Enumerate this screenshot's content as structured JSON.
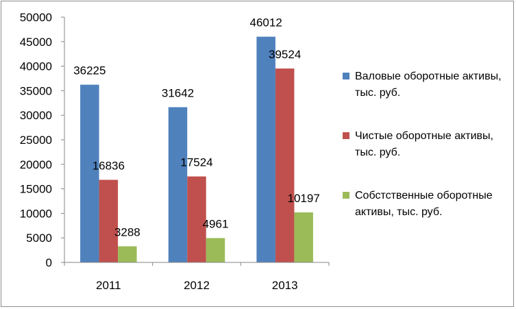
{
  "chart_data": {
    "type": "bar",
    "categories": [
      "2011",
      "2012",
      "2013"
    ],
    "series": [
      {
        "name": "Валовые оборотные активы, тыс. руб.",
        "values": [
          36225,
          31642,
          46012
        ],
        "color": "#4f81bd"
      },
      {
        "name": "Чистые оборотные активы, тыс. руб.",
        "values": [
          16836,
          17524,
          39524
        ],
        "color": "#c0504d"
      },
      {
        "name": "Собстственные оборотные активы, тыс. руб.",
        "values": [
          3288,
          4961,
          10197
        ],
        "color": "#9bbb59"
      }
    ],
    "ylim": [
      0,
      50000
    ],
    "yticks": [
      0,
      5000,
      10000,
      15000,
      20000,
      25000,
      30000,
      35000,
      40000,
      45000,
      50000
    ],
    "grid": false,
    "legend_position": "right"
  }
}
